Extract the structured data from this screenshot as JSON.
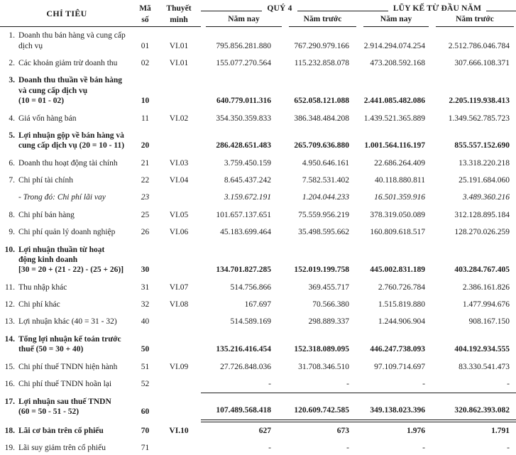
{
  "header": {
    "col_item": "CHỈ TIÊU",
    "col_code_line1": "Mã",
    "col_code_line2": "số",
    "col_note_line1": "Thuyết",
    "col_note_line2": "minh",
    "group_q4": "QUÝ 4",
    "group_ytd": "LŨY KẾ TỪ ĐẦU NĂM",
    "sub_this_year": "Năm nay",
    "sub_prior_year": "Năm trước"
  },
  "rows": [
    {
      "no": "1.",
      "lines": [
        "Doanh thu bán hàng và cung cấp",
        "dịch vụ"
      ],
      "code": "01",
      "note": "VI.01",
      "q4_now": "795.856.281.880",
      "q4_prior": "767.290.979.166",
      "ytd_now": "2.914.294.074.254",
      "ytd_prior": "2.512.786.046.784",
      "bold": false,
      "italic": false,
      "rule": "none"
    },
    {
      "no": "2.",
      "lines": [
        "Các khoản giảm trừ doanh thu"
      ],
      "code": "02",
      "note": "VI.01",
      "q4_now": "155.077.270.564",
      "q4_prior": "115.232.858.078",
      "ytd_now": "473.208.592.168",
      "ytd_prior": "307.666.108.371",
      "bold": false,
      "italic": false,
      "rule": "none"
    },
    {
      "no": "3.",
      "lines": [
        "Doanh thu thuần về bán hàng",
        "và cung cấp dịch vụ",
        "(10 = 01 - 02)"
      ],
      "code": "10",
      "note": "",
      "q4_now": "640.779.011.316",
      "q4_prior": "652.058.121.088",
      "ytd_now": "2.441.085.482.086",
      "ytd_prior": "2.205.119.938.413",
      "bold": true,
      "italic": false,
      "rule": "none"
    },
    {
      "no": "4.",
      "lines": [
        "Giá vốn hàng bán"
      ],
      "code": "11",
      "note": "VI.02",
      "q4_now": "354.350.359.833",
      "q4_prior": "386.348.484.208",
      "ytd_now": "1.439.521.365.889",
      "ytd_prior": "1.349.562.785.723",
      "bold": false,
      "italic": false,
      "rule": "none"
    },
    {
      "no": "5.",
      "lines": [
        "Lợi nhuận gộp về bán hàng và",
        "cung cấp dịch vụ (20 = 10 - 11)"
      ],
      "code": "20",
      "note": "",
      "q4_now": "286.428.651.483",
      "q4_prior": "265.709.636.880",
      "ytd_now": "1.001.564.116.197",
      "ytd_prior": "855.557.152.690",
      "bold": true,
      "italic": false,
      "rule": "none"
    },
    {
      "no": "6.",
      "lines": [
        "Doanh thu hoạt động tài chính"
      ],
      "code": "21",
      "note": "VI.03",
      "q4_now": "3.759.450.159",
      "q4_prior": "4.950.646.161",
      "ytd_now": "22.686.264.409",
      "ytd_prior": "13.318.220.218",
      "bold": false,
      "italic": false,
      "rule": "none"
    },
    {
      "no": "7.",
      "lines": [
        "Chi phí tài chính"
      ],
      "code": "22",
      "note": "VI.04",
      "q4_now": "8.645.437.242",
      "q4_prior": "7.582.531.402",
      "ytd_now": "40.118.880.811",
      "ytd_prior": "25.191.684.060",
      "bold": false,
      "italic": false,
      "rule": "none"
    },
    {
      "no": "",
      "lines": [
        "- Trong đó: Chi phí lãi vay"
      ],
      "code": "23",
      "note": "",
      "q4_now": "3.159.672.191",
      "q4_prior": "1.204.044.233",
      "ytd_now": "16.501.359.916",
      "ytd_prior": "3.489.360.216",
      "bold": false,
      "italic": true,
      "rule": "none"
    },
    {
      "no": "8.",
      "lines": [
        "Chi phí bán hàng"
      ],
      "code": "25",
      "note": "VI.05",
      "q4_now": "101.657.137.651",
      "q4_prior": "75.559.956.219",
      "ytd_now": "378.319.050.089",
      "ytd_prior": "312.128.895.184",
      "bold": false,
      "italic": false,
      "rule": "none"
    },
    {
      "no": "9.",
      "lines": [
        "Chi phí quản lý doanh nghiệp"
      ],
      "code": "26",
      "note": "VI.06",
      "q4_now": "45.183.699.464",
      "q4_prior": "35.498.595.662",
      "ytd_now": "160.809.618.517",
      "ytd_prior": "128.270.026.259",
      "bold": false,
      "italic": false,
      "rule": "none"
    },
    {
      "no": "10.",
      "lines": [
        "Lợi nhuận thuần từ hoạt",
        "động kinh doanh",
        "[30 = 20 + (21 - 22) - (25 + 26)]"
      ],
      "code": "30",
      "note": "",
      "q4_now": "134.701.827.285",
      "q4_prior": "152.019.199.758",
      "ytd_now": "445.002.831.189",
      "ytd_prior": "403.284.767.405",
      "bold": true,
      "italic": false,
      "rule": "none"
    },
    {
      "no": "11.",
      "lines": [
        "Thu nhập khác"
      ],
      "code": "31",
      "note": "VI.07",
      "q4_now": "514.756.866",
      "q4_prior": "369.455.717",
      "ytd_now": "2.760.726.784",
      "ytd_prior": "2.386.161.826",
      "bold": false,
      "italic": false,
      "rule": "none"
    },
    {
      "no": "12.",
      "lines": [
        "Chi phí khác"
      ],
      "code": "32",
      "note": "VI.08",
      "q4_now": "167.697",
      "q4_prior": "70.566.380",
      "ytd_now": "1.515.819.880",
      "ytd_prior": "1.477.994.676",
      "bold": false,
      "italic": false,
      "rule": "none"
    },
    {
      "no": "13.",
      "lines": [
        "Lợi nhuận khác (40 = 31 - 32)"
      ],
      "code": "40",
      "note": "",
      "q4_now": "514.589.169",
      "q4_prior": "298.889.337",
      "ytd_now": "1.244.906.904",
      "ytd_prior": "908.167.150",
      "bold": false,
      "italic": false,
      "rule": "none"
    },
    {
      "no": "14.",
      "lines": [
        "Tổng lợi nhuận kế toán trước",
        "thuế (50 = 30 + 40)"
      ],
      "code": "50",
      "note": "",
      "q4_now": "135.216.416.454",
      "q4_prior": "152.318.089.095",
      "ytd_now": "446.247.738.093",
      "ytd_prior": "404.192.934.555",
      "bold": true,
      "italic": false,
      "rule": "none"
    },
    {
      "no": "15.",
      "lines": [
        "Chi phí thuế TNDN hiện hành"
      ],
      "code": "51",
      "note": "VI.09",
      "q4_now": "27.726.848.036",
      "q4_prior": "31.708.346.510",
      "ytd_now": "97.109.714.697",
      "ytd_prior": "83.330.541.473",
      "bold": false,
      "italic": false,
      "rule": "none"
    },
    {
      "no": "16.",
      "lines": [
        "Chi phí thuế TNDN hoãn lại"
      ],
      "code": "52",
      "note": "",
      "q4_now": "-",
      "q4_prior": "-",
      "ytd_now": "-",
      "ytd_prior": "-",
      "bold": false,
      "italic": false,
      "rule": "single"
    },
    {
      "no": "17.",
      "lines": [
        "Lợi nhuận sau thuế TNDN",
        "(60 = 50 - 51 - 52)"
      ],
      "code": "60",
      "note": "",
      "q4_now": "107.489.568.418",
      "q4_prior": "120.609.742.585",
      "ytd_now": "349.138.023.396",
      "ytd_prior": "320.862.393.082",
      "bold": true,
      "italic": false,
      "rule": "double"
    },
    {
      "no": "18.",
      "lines": [
        "Lãi cơ bản trên cổ phiếu"
      ],
      "code": "70",
      "note": "VI.10",
      "q4_now": "627",
      "q4_prior": "673",
      "ytd_now": "1.976",
      "ytd_prior": "1.791",
      "bold": true,
      "italic": false,
      "rule": "none"
    },
    {
      "no": "19.",
      "lines": [
        "Lãi suy giảm trên cổ phiếu"
      ],
      "code": "71",
      "note": "",
      "q4_now": "-",
      "q4_prior": "-",
      "ytd_now": "-",
      "ytd_prior": "-",
      "bold": false,
      "italic": false,
      "rule": "double-all"
    }
  ]
}
